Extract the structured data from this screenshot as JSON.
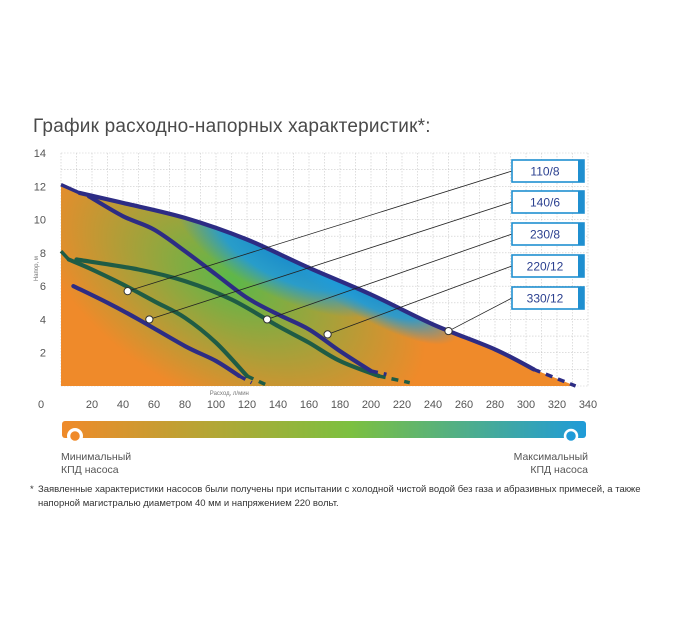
{
  "title": "График расходно-напорных характеристик*:",
  "chart_data": {
    "type": "line",
    "xlabel": "Расход, л/мин",
    "ylabel": "Напор, м",
    "xlim": [
      0,
      340
    ],
    "ylim": [
      0,
      14
    ],
    "x_ticks": [
      "20",
      "40",
      "60",
      "80",
      "100",
      "120",
      "140",
      "160",
      "180",
      "200",
      "220",
      "240",
      "260",
      "280",
      "300",
      "320",
      "340"
    ],
    "x_origin_label": "0",
    "y_ticks": [
      "2",
      "4",
      "6",
      "8",
      "10",
      "12",
      "14"
    ],
    "grid": true,
    "series": [
      {
        "name": "110/8",
        "color": "#1f5c45",
        "points": [
          [
            5,
            7.6
          ],
          [
            20,
            7.0
          ],
          [
            40,
            6.1
          ],
          [
            60,
            5.1
          ],
          [
            80,
            4.1
          ],
          [
            100,
            2.6
          ],
          [
            120,
            0.6
          ]
        ],
        "dash": [
          [
            120,
            0.6
          ],
          [
            134,
            0.0
          ]
        ],
        "marker": [
          43,
          5.7
        ]
      },
      {
        "name": "140/6",
        "color": "#2d2c84",
        "points": [
          [
            8,
            6.0
          ],
          [
            30,
            5.0
          ],
          [
            50,
            4.0
          ],
          [
            80,
            2.4
          ],
          [
            100,
            1.5
          ],
          [
            115,
            0.6
          ]
        ],
        "dash": [
          [
            115,
            0.6
          ],
          [
            123,
            0.2
          ]
        ],
        "marker": [
          57,
          4.0
        ]
      },
      {
        "name": "230/8",
        "color": "#1f5c45",
        "points": [
          [
            10,
            7.6
          ],
          [
            50,
            7.0
          ],
          [
            80,
            6.3
          ],
          [
            110,
            5.2
          ],
          [
            140,
            3.6
          ],
          [
            160,
            2.6
          ],
          [
            180,
            1.5
          ],
          [
            205,
            0.6
          ]
        ],
        "dash": [
          [
            205,
            0.6
          ],
          [
            225,
            0.2
          ]
        ],
        "marker": [
          133,
          4.0
        ]
      },
      {
        "name": "220/12",
        "color": "#2d2c84",
        "points": [
          [
            18,
            11.4
          ],
          [
            40,
            10.2
          ],
          [
            60,
            9.4
          ],
          [
            80,
            8.1
          ],
          [
            100,
            6.7
          ],
          [
            120,
            5.3
          ],
          [
            140,
            4.3
          ],
          [
            160,
            3.4
          ],
          [
            180,
            2.1
          ],
          [
            200,
            0.9
          ]
        ],
        "dash": [
          [
            200,
            0.9
          ],
          [
            210,
            0.7
          ]
        ],
        "marker": [
          172,
          3.1
        ]
      },
      {
        "name": "330/12",
        "color": "#2d2c84",
        "points": [
          [
            12,
            11.6
          ],
          [
            40,
            11.0
          ],
          [
            80,
            10.1
          ],
          [
            120,
            8.8
          ],
          [
            160,
            7.1
          ],
          [
            200,
            5.5
          ],
          [
            240,
            3.7
          ],
          [
            280,
            2.2
          ],
          [
            305,
            1.0
          ]
        ],
        "dash": [
          [
            305,
            1.0
          ],
          [
            332,
            0.0
          ]
        ],
        "marker": [
          250,
          3.3
        ]
      }
    ]
  },
  "legend": {
    "min_label_line1": "Минимальный",
    "min_label_line2": "КПД насоса",
    "max_label_line1": "Максимальный",
    "max_label_line2": "КПД насоса",
    "gradient_colors": [
      "#ef8a2a",
      "#7cc040",
      "#1f9bd8"
    ]
  },
  "footnote": {
    "star": "*",
    "text": "Заявленные характеристики насосов были получены при испытании с холодной чистой водой без газа и абразивных примесей, а также напорной магистралью диаметром 40 мм и напряжением 220 вольт."
  },
  "colors": {
    "orange": "#ef8a2a",
    "green": "#7cc040",
    "blue": "#1f9bd8",
    "label_box_border": "#1f8fd0",
    "label_text": "#2a3f8f"
  }
}
